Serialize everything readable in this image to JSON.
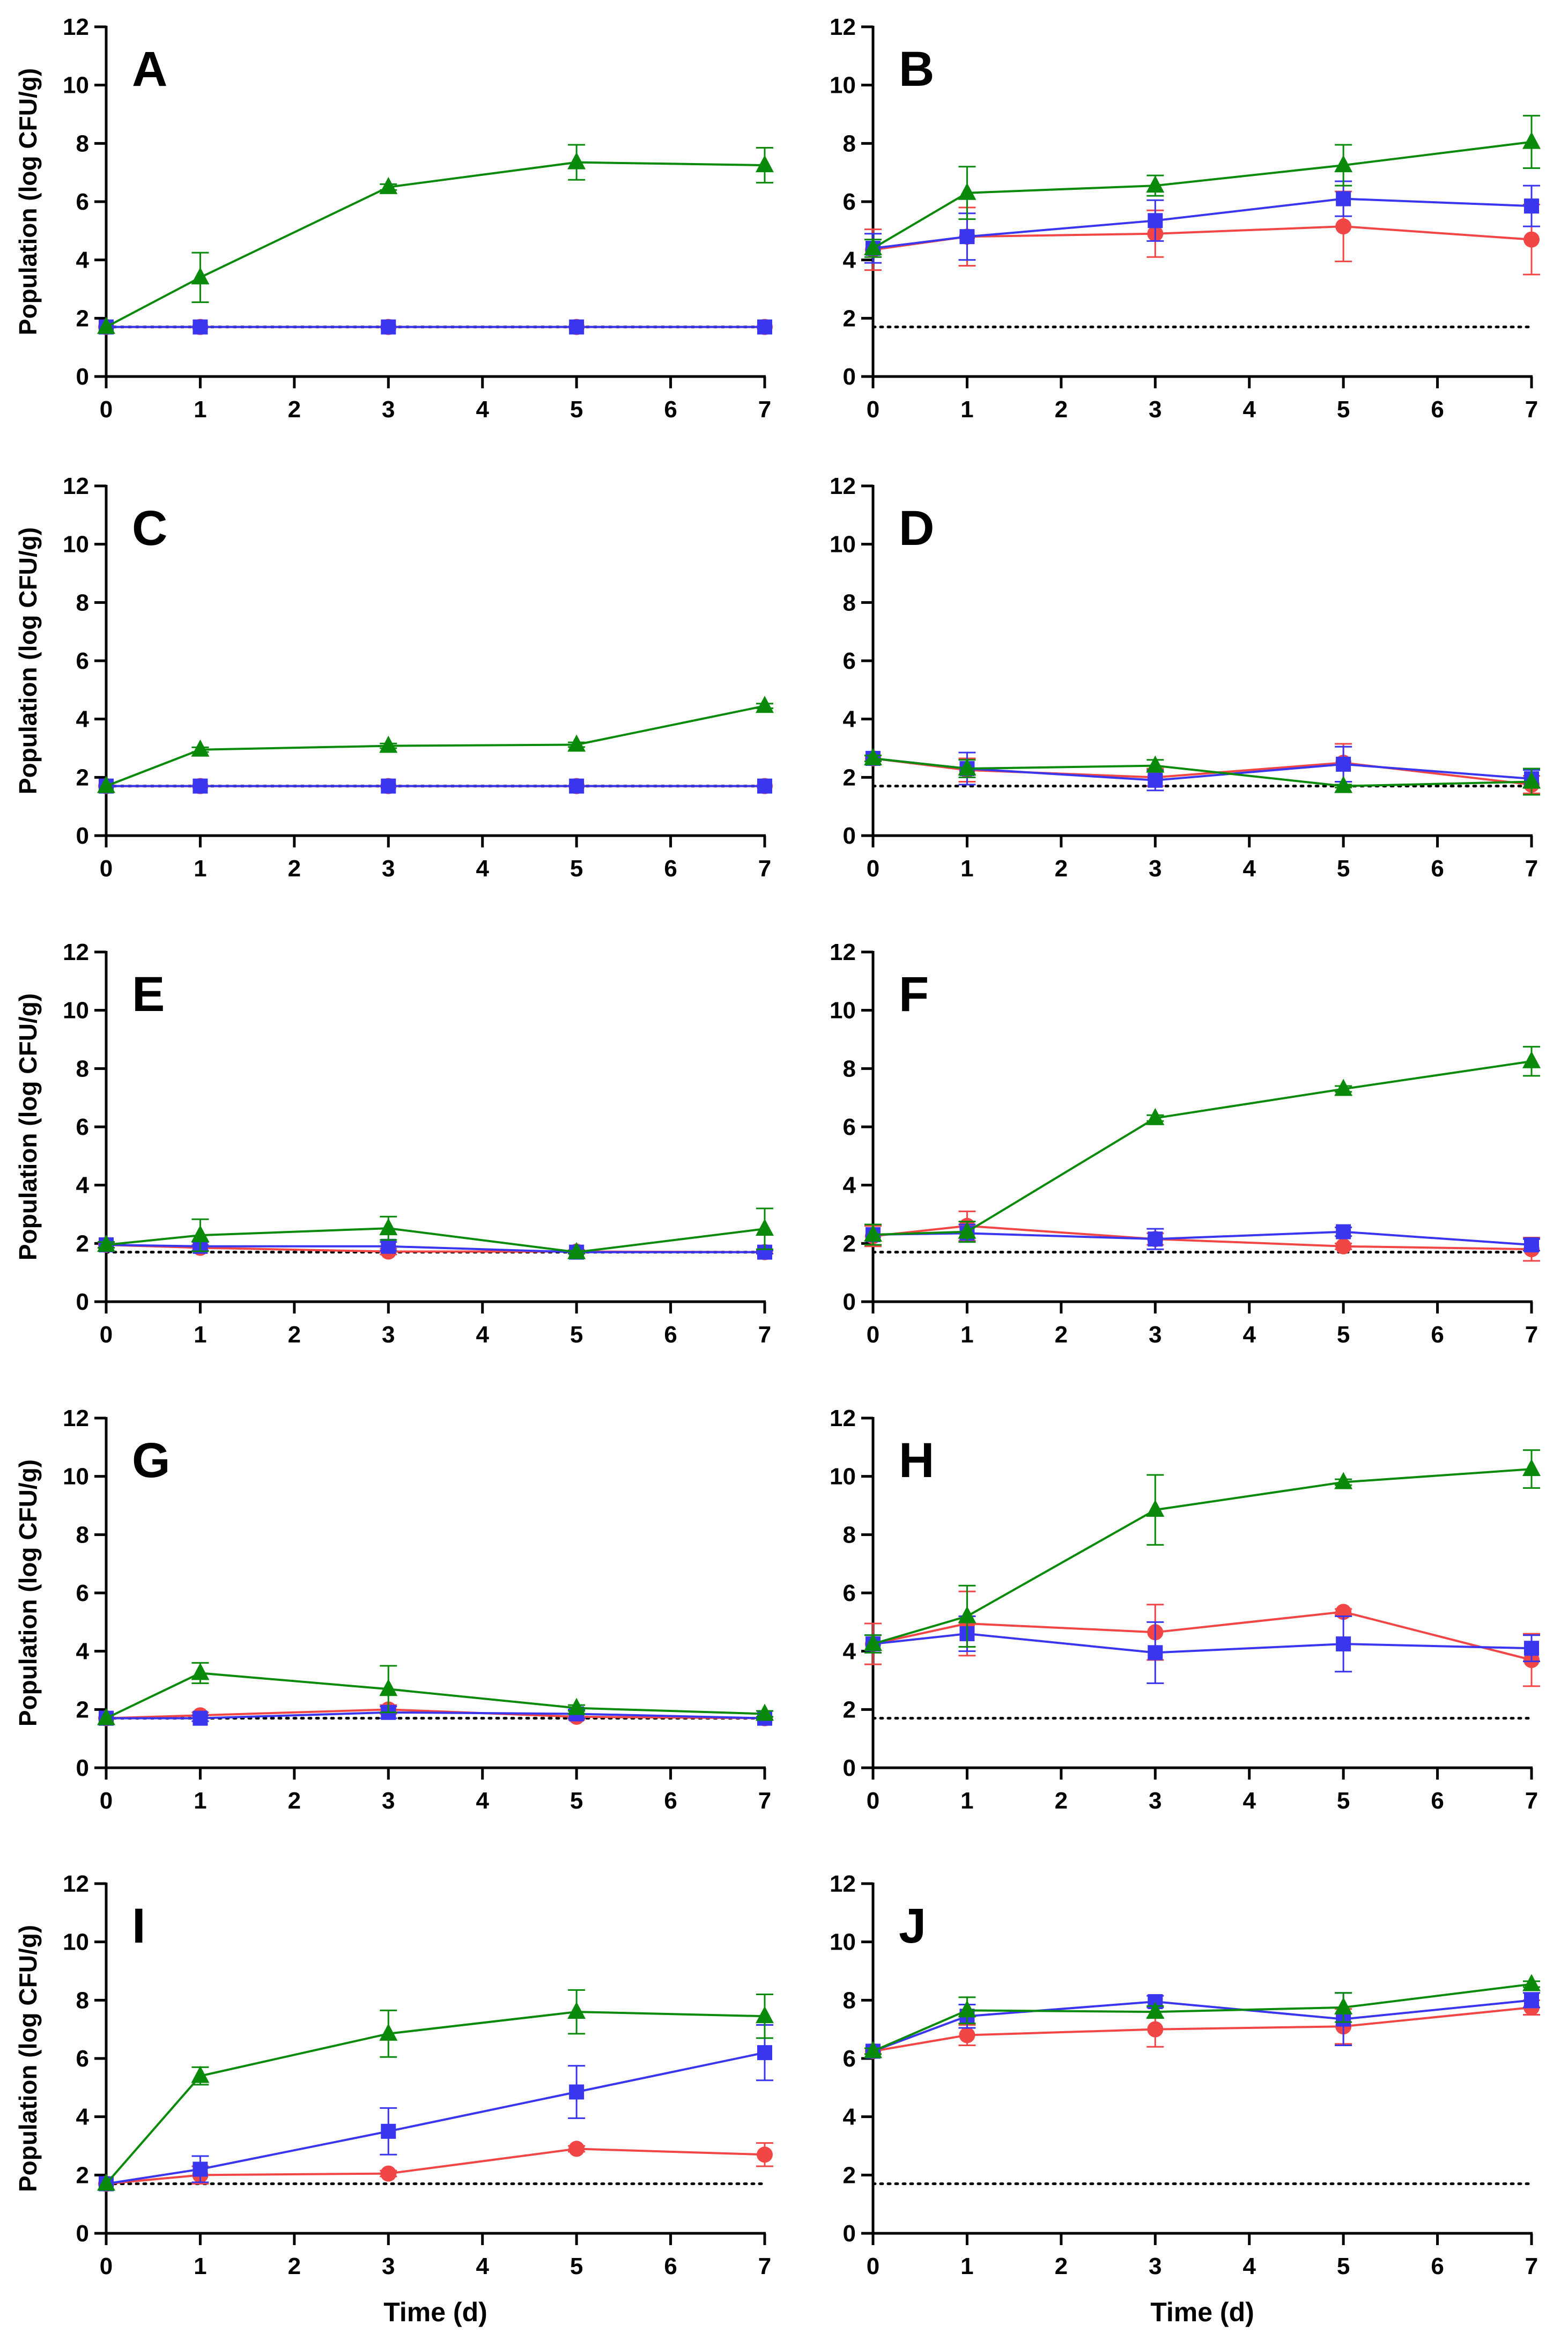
{
  "figure": {
    "xlabel": "Time (d)",
    "ylabel": "Population (log CFU/g)",
    "xticks": [
      "0",
      "1",
      "2",
      "3",
      "4",
      "5",
      "6",
      "7"
    ],
    "yticks": [
      "0",
      "2",
      "4",
      "6",
      "8",
      "10",
      "12"
    ]
  },
  "colors": {
    "triangle": "#0a8a0a",
    "square": "#3a36f0",
    "circle": "#f24646",
    "axis": "#000000"
  },
  "chart_data": [
    {
      "type": "line",
      "panel": "A",
      "x": [
        0,
        1,
        3,
        5,
        7
      ],
      "xlim": [
        0,
        7
      ],
      "ylim": [
        0,
        12
      ],
      "detection_limit": 1.7,
      "xlabel": "",
      "ylabel": "Population (log CFU/g)",
      "series": [
        {
          "marker": "triangle",
          "values": [
            1.7,
            3.4,
            6.5,
            7.35,
            7.25
          ],
          "errors": [
            0,
            0.85,
            0.1,
            0.6,
            0.6
          ]
        },
        {
          "marker": "square",
          "values": [
            1.7,
            1.7,
            1.7,
            1.7,
            1.7
          ],
          "errors": [
            0,
            0,
            0,
            0,
            0
          ]
        },
        {
          "marker": "circle",
          "values": [
            1.7,
            1.7,
            1.7,
            1.7,
            1.7
          ],
          "errors": [
            0,
            0,
            0,
            0,
            0
          ]
        }
      ]
    },
    {
      "type": "line",
      "panel": "B",
      "x": [
        0,
        1,
        3,
        5,
        7
      ],
      "xlim": [
        0,
        7
      ],
      "ylim": [
        0,
        12
      ],
      "detection_limit": 1.7,
      "xlabel": "",
      "ylabel": "",
      "series": [
        {
          "marker": "triangle",
          "values": [
            4.4,
            6.3,
            6.55,
            7.25,
            8.05
          ],
          "errors": [
            0.3,
            0.9,
            0.35,
            0.7,
            0.9
          ]
        },
        {
          "marker": "square",
          "values": [
            4.4,
            4.8,
            5.35,
            6.1,
            5.85
          ],
          "errors": [
            0.5,
            0.8,
            0.7,
            0.6,
            0.7
          ]
        },
        {
          "marker": "circle",
          "values": [
            4.35,
            4.8,
            4.9,
            5.15,
            4.7
          ],
          "errors": [
            0.7,
            1.0,
            0.8,
            1.2,
            1.2
          ]
        }
      ]
    },
    {
      "type": "line",
      "panel": "C",
      "x": [
        0,
        1,
        3,
        5,
        7
      ],
      "xlim": [
        0,
        7
      ],
      "ylim": [
        0,
        12
      ],
      "detection_limit": 1.7,
      "xlabel": "",
      "ylabel": "Population (log CFU/g)",
      "series": [
        {
          "marker": "triangle",
          "values": [
            1.7,
            2.95,
            3.08,
            3.12,
            4.45
          ],
          "errors": [
            0,
            0.08,
            0.08,
            0.08,
            0.08
          ]
        },
        {
          "marker": "square",
          "values": [
            1.7,
            1.7,
            1.7,
            1.7,
            1.7
          ],
          "errors": [
            0,
            0,
            0,
            0,
            0
          ]
        },
        {
          "marker": "circle",
          "values": [
            1.7,
            1.7,
            1.7,
            1.7,
            1.7
          ],
          "errors": [
            0,
            0,
            0,
            0,
            0
          ]
        }
      ]
    },
    {
      "type": "line",
      "panel": "D",
      "x": [
        0,
        1,
        3,
        5,
        7
      ],
      "xlim": [
        0,
        7
      ],
      "ylim": [
        0,
        12
      ],
      "detection_limit": 1.7,
      "xlabel": "",
      "ylabel": "",
      "series": [
        {
          "marker": "triangle",
          "values": [
            2.65,
            2.3,
            2.4,
            1.7,
            1.85
          ],
          "errors": [
            0.1,
            0.3,
            0.2,
            0.05,
            0.45
          ]
        },
        {
          "marker": "square",
          "values": [
            2.65,
            2.3,
            1.9,
            2.45,
            1.95
          ],
          "errors": [
            0.1,
            0.55,
            0.35,
            0.6,
            0.3
          ]
        },
        {
          "marker": "circle",
          "values": [
            2.65,
            2.25,
            2.0,
            2.5,
            1.75
          ],
          "errors": [
            0.1,
            0.4,
            0.3,
            0.65,
            0.3
          ]
        }
      ]
    },
    {
      "type": "line",
      "panel": "E",
      "x": [
        0,
        1,
        3,
        5,
        7
      ],
      "xlim": [
        0,
        7
      ],
      "ylim": [
        0,
        12
      ],
      "detection_limit": 1.7,
      "xlabel": "",
      "ylabel": "Population (log CFU/g)",
      "series": [
        {
          "marker": "triangle",
          "values": [
            1.95,
            2.28,
            2.52,
            1.7,
            2.5
          ],
          "errors": [
            0.1,
            0.55,
            0.4,
            0.05,
            0.7
          ]
        },
        {
          "marker": "square",
          "values": [
            1.95,
            1.9,
            1.9,
            1.7,
            1.7
          ],
          "errors": [
            0.1,
            0.15,
            0.15,
            0.05,
            0.05
          ]
        },
        {
          "marker": "circle",
          "values": [
            1.95,
            1.85,
            1.72,
            1.72,
            1.7
          ],
          "errors": [
            0.1,
            0.1,
            0.1,
            0.05,
            0.05
          ]
        }
      ]
    },
    {
      "type": "line",
      "panel": "F",
      "x": [
        0,
        1,
        3,
        5,
        7
      ],
      "xlim": [
        0,
        7
      ],
      "ylim": [
        0,
        12
      ],
      "detection_limit": 1.7,
      "xlabel": "",
      "ylabel": "",
      "series": [
        {
          "marker": "triangle",
          "values": [
            2.3,
            2.4,
            6.3,
            7.3,
            8.25
          ],
          "errors": [
            0.35,
            0.35,
            0.1,
            0.1,
            0.5
          ]
        },
        {
          "marker": "square",
          "values": [
            2.3,
            2.35,
            2.15,
            2.4,
            1.95
          ],
          "errors": [
            0.35,
            0.3,
            0.35,
            0.15,
            0.2
          ]
        },
        {
          "marker": "circle",
          "values": [
            2.25,
            2.6,
            2.15,
            1.9,
            1.8
          ],
          "errors": [
            0.35,
            0.5,
            0.2,
            0.1,
            0.4
          ]
        }
      ]
    },
    {
      "type": "line",
      "panel": "G",
      "x": [
        0,
        1,
        3,
        5,
        7
      ],
      "xlim": [
        0,
        7
      ],
      "ylim": [
        0,
        12
      ],
      "detection_limit": 1.7,
      "xlabel": "",
      "ylabel": "Population (log CFU/g)",
      "series": [
        {
          "marker": "triangle",
          "values": [
            1.7,
            3.25,
            2.7,
            2.05,
            1.85
          ],
          "errors": [
            0,
            0.35,
            0.8,
            0.1,
            0.1
          ]
        },
        {
          "marker": "square",
          "values": [
            1.7,
            1.7,
            1.9,
            1.85,
            1.7
          ],
          "errors": [
            0,
            0.1,
            0.2,
            0.15,
            0.05
          ]
        },
        {
          "marker": "circle",
          "values": [
            1.7,
            1.8,
            2.0,
            1.75,
            1.7
          ],
          "errors": [
            0,
            0.1,
            0.15,
            0.1,
            0.05
          ]
        }
      ]
    },
    {
      "type": "line",
      "panel": "H",
      "x": [
        0,
        1,
        3,
        5,
        7
      ],
      "xlim": [
        0,
        7
      ],
      "ylim": [
        0,
        12
      ],
      "detection_limit": 1.7,
      "xlabel": "",
      "ylabel": "",
      "series": [
        {
          "marker": "triangle",
          "values": [
            4.25,
            5.2,
            8.85,
            9.8,
            10.25
          ],
          "errors": [
            0.3,
            1.05,
            1.2,
            0.1,
            0.65
          ]
        },
        {
          "marker": "square",
          "values": [
            4.25,
            4.6,
            3.95,
            4.25,
            4.1
          ],
          "errors": [
            0.3,
            0.6,
            1.05,
            0.95,
            0.45
          ]
        },
        {
          "marker": "circle",
          "values": [
            4.25,
            4.95,
            4.65,
            5.35,
            3.7
          ],
          "errors": [
            0.7,
            1.1,
            0.95,
            0.1,
            0.9
          ]
        }
      ]
    },
    {
      "type": "line",
      "panel": "I",
      "x": [
        0,
        1,
        3,
        5,
        7
      ],
      "xlim": [
        0,
        7
      ],
      "ylim": [
        0,
        12
      ],
      "detection_limit": 1.7,
      "xlabel": "Time (d)",
      "ylabel": "Population (log CFU/g)",
      "series": [
        {
          "marker": "triangle",
          "values": [
            1.7,
            5.4,
            6.85,
            7.6,
            7.45
          ],
          "errors": [
            0,
            0.3,
            0.8,
            0.75,
            0.75
          ]
        },
        {
          "marker": "square",
          "values": [
            1.7,
            2.2,
            3.5,
            4.85,
            6.2
          ],
          "errors": [
            0,
            0.45,
            0.8,
            0.9,
            0.95
          ]
        },
        {
          "marker": "circle",
          "values": [
            1.7,
            2.0,
            2.05,
            2.9,
            2.7
          ],
          "errors": [
            0,
            0.3,
            0.1,
            0.1,
            0.4
          ]
        }
      ]
    },
    {
      "type": "line",
      "panel": "J",
      "x": [
        0,
        1,
        3,
        5,
        7
      ],
      "xlim": [
        0,
        7
      ],
      "ylim": [
        0,
        12
      ],
      "detection_limit": 1.7,
      "xlabel": "Time (d)",
      "ylabel": "",
      "series": [
        {
          "marker": "triangle",
          "values": [
            6.25,
            7.65,
            7.6,
            7.75,
            8.55
          ],
          "errors": [
            0.1,
            0.45,
            0.2,
            0.5,
            0.1
          ]
        },
        {
          "marker": "square",
          "values": [
            6.25,
            7.45,
            7.95,
            7.35,
            8.0
          ],
          "errors": [
            0.1,
            0.4,
            0.2,
            0.9,
            0.25
          ]
        },
        {
          "marker": "circle",
          "values": [
            6.25,
            6.8,
            7.0,
            7.1,
            7.75
          ],
          "errors": [
            0.1,
            0.35,
            0.6,
            0.6,
            0.25
          ]
        }
      ]
    }
  ]
}
